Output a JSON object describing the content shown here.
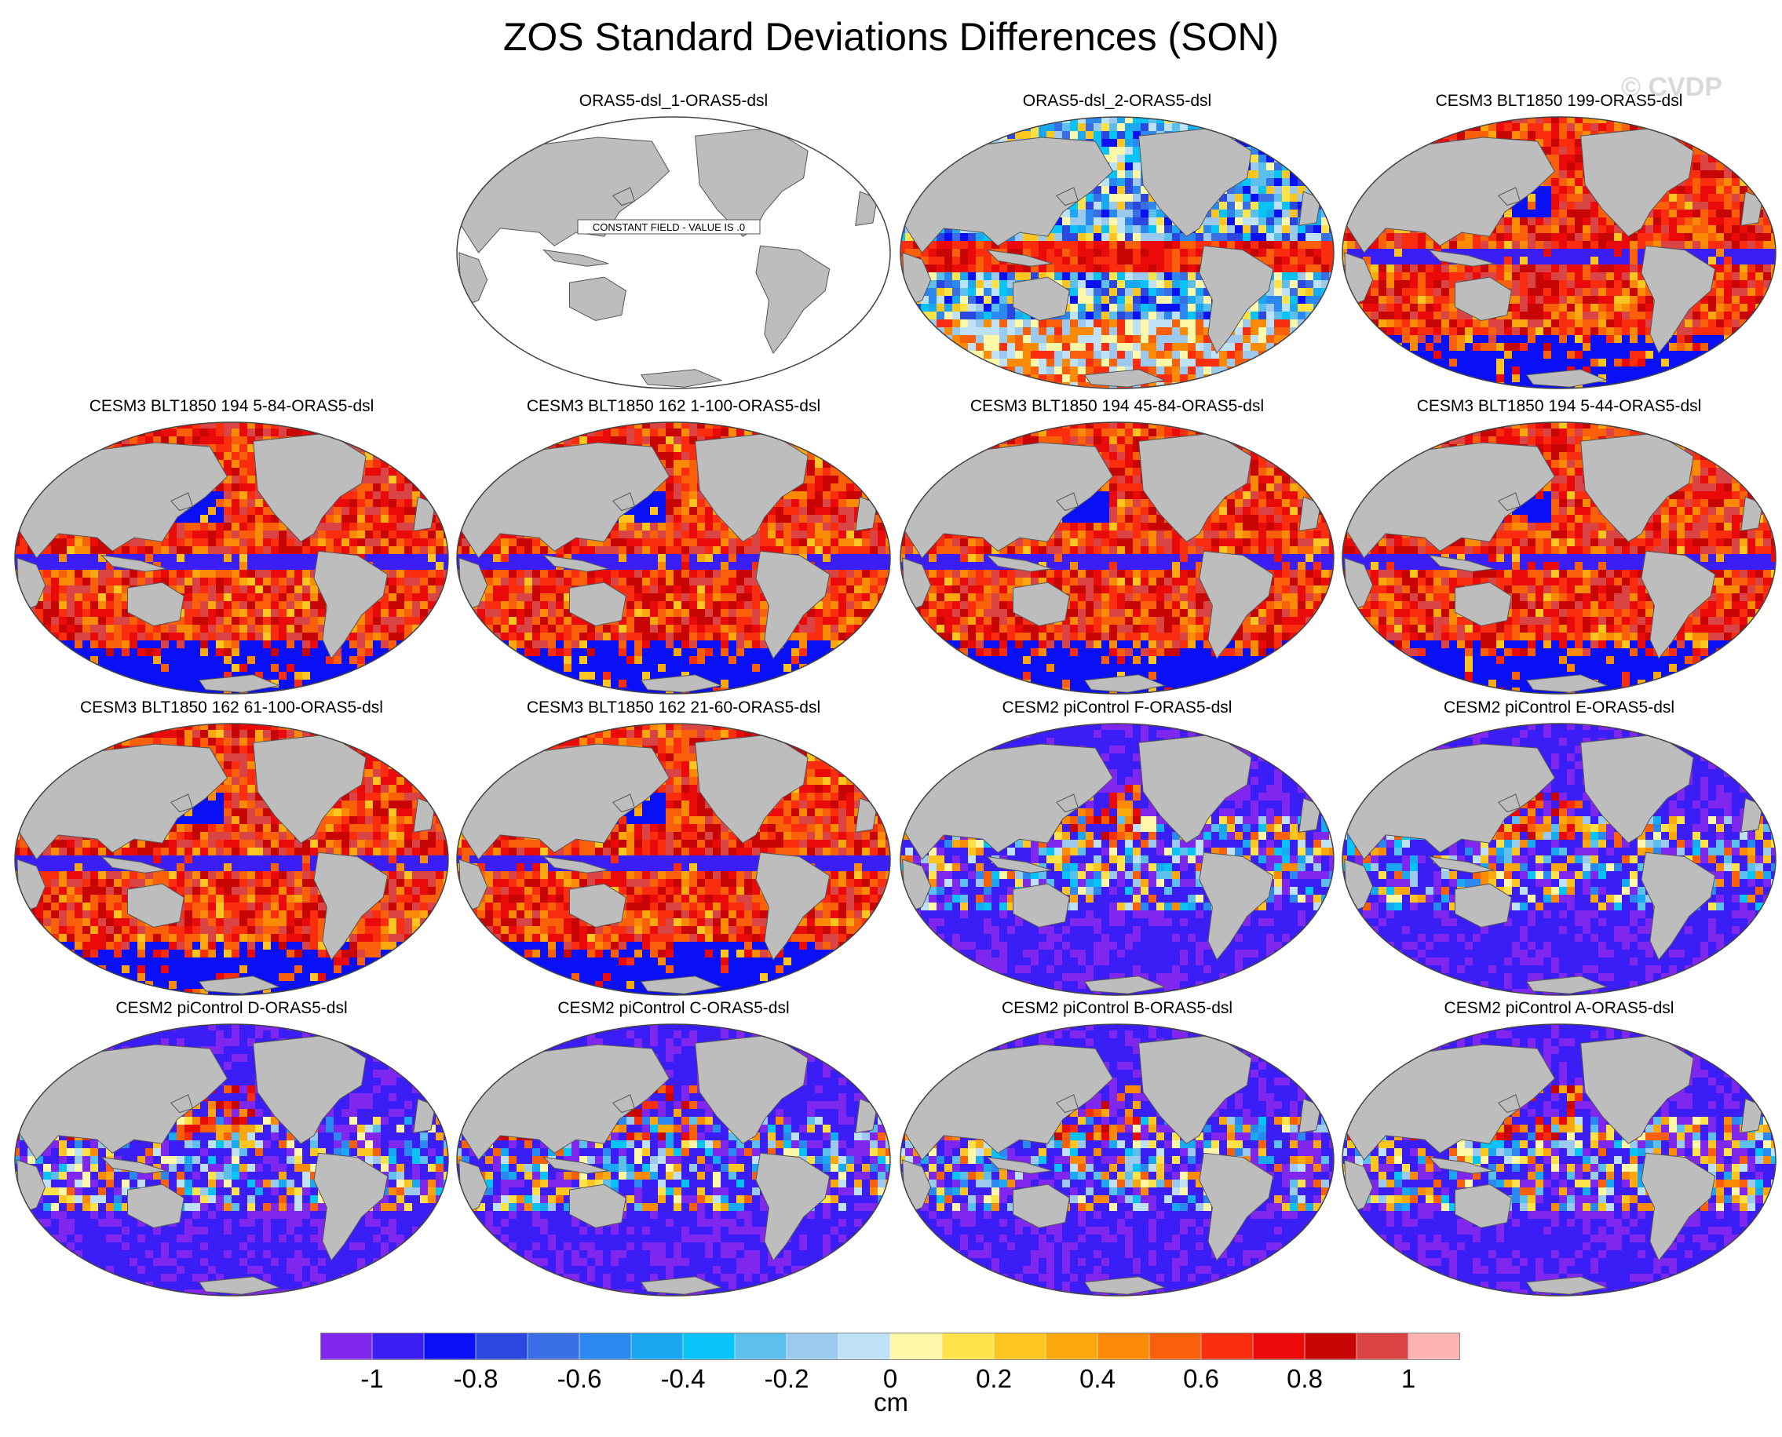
{
  "title": "ZOS Standard Deviations Differences (SON)",
  "watermark": "© CVDP",
  "colors": {
    "land": "#bdbdbd",
    "coast": "#555555",
    "ocean_blank": "#ffffff"
  },
  "panels": [
    {
      "title": "ORAS5-dsl_1-ORAS5-dsl",
      "pattern": "constant",
      "constant_label": "CONSTANT FIELD - VALUE IS .0"
    },
    {
      "title": "ORAS5-dsl_2-ORAS5-dsl",
      "pattern": "mixed"
    },
    {
      "title": "CESM3 BLT1850 199-ORAS5-dsl",
      "pattern": "positive"
    },
    {
      "title": "CESM3 BLT1850 194 5-84-ORAS5-dsl",
      "pattern": "positive"
    },
    {
      "title": "CESM3 BLT1850 162 1-100-ORAS5-dsl",
      "pattern": "positive"
    },
    {
      "title": "CESM3 BLT1850 194 45-84-ORAS5-dsl",
      "pattern": "positive"
    },
    {
      "title": "CESM3 BLT1850 194 5-44-ORAS5-dsl",
      "pattern": "positive"
    },
    {
      "title": "CESM3 BLT1850 162 61-100-ORAS5-dsl",
      "pattern": "positive"
    },
    {
      "title": "CESM3 BLT1850 162 21-60-ORAS5-dsl",
      "pattern": "positive"
    },
    {
      "title": "CESM2 piControl F-ORAS5-dsl",
      "pattern": "negative"
    },
    {
      "title": "CESM2 piControl E-ORAS5-dsl",
      "pattern": "negative"
    },
    {
      "title": "CESM2 piControl D-ORAS5-dsl",
      "pattern": "negative"
    },
    {
      "title": "CESM2 piControl C-ORAS5-dsl",
      "pattern": "negative"
    },
    {
      "title": "CESM2 piControl B-ORAS5-dsl",
      "pattern": "negative"
    },
    {
      "title": "CESM2 piControl A-ORAS5-dsl",
      "pattern": "negative"
    }
  ],
  "colorbar": {
    "units": "cm",
    "range": [
      -1.1,
      1.1
    ],
    "step": 0.1,
    "colors": [
      "#7f27ee",
      "#3b1ef6",
      "#0a10f5",
      "#2b47e0",
      "#3a6ee5",
      "#2c88f1",
      "#1aa8f2",
      "#08c3f7",
      "#5cbfee",
      "#9ccaee",
      "#bee1f5",
      "#fff8a8",
      "#fde24a",
      "#fcc520",
      "#fba80e",
      "#fb8a06",
      "#fa600a",
      "#fa2e0e",
      "#ea0a0a",
      "#c70505",
      "#db4444",
      "#fbb3b3"
    ],
    "tick_labels": [
      "-1",
      "-0.8",
      "-0.6",
      "-0.4",
      "-0.2",
      "0",
      "0.2",
      "0.4",
      "0.6",
      "0.8",
      "1"
    ]
  }
}
